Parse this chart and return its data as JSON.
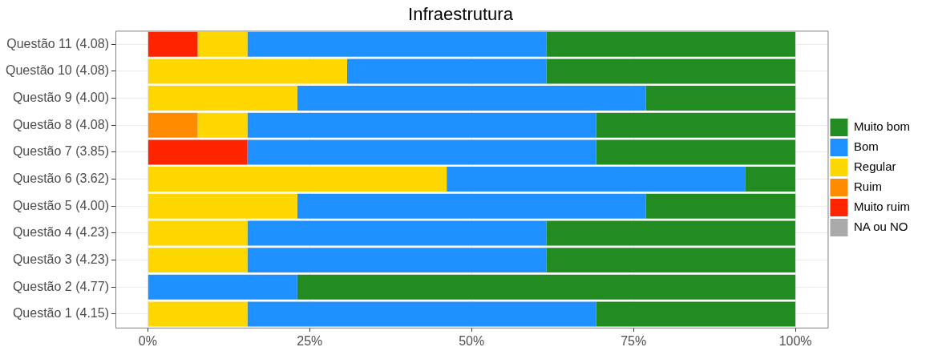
{
  "chart_data": {
    "type": "bar",
    "orientation": "horizontal",
    "stacked": true,
    "title": "Infraestrutura",
    "categories": [
      "Questão 11 (4.08)",
      "Questão 10 (4.08)",
      "Questão 9 (4.00)",
      "Questão 8 (4.08)",
      "Questão 7 (3.85)",
      "Questão 6 (3.62)",
      "Questão 5 (4.00)",
      "Questão 4 (4.23)",
      "Questão 3 (4.23)",
      "Questão 2 (4.77)",
      "Questão 1 (4.15)"
    ],
    "series": [
      {
        "name": "NA ou NO",
        "color": "#aaaaaa",
        "values": [
          0,
          0,
          0,
          0,
          0,
          0,
          0,
          0,
          0,
          0,
          0
        ]
      },
      {
        "name": "Muito ruim",
        "color": "#ff2400",
        "values": [
          7.69,
          0,
          0,
          0,
          15.38,
          0,
          0,
          0,
          0,
          0,
          0
        ]
      },
      {
        "name": "Ruim",
        "color": "#ff8c00",
        "values": [
          0,
          0,
          0,
          7.69,
          0,
          0,
          0,
          0,
          0,
          0,
          0
        ]
      },
      {
        "name": "Regular",
        "color": "#ffd700",
        "values": [
          7.69,
          30.77,
          23.08,
          7.69,
          0,
          46.15,
          23.08,
          15.38,
          15.38,
          0,
          15.38
        ]
      },
      {
        "name": "Bom",
        "color": "#1e90ff",
        "values": [
          46.15,
          30.77,
          53.85,
          53.85,
          53.85,
          46.15,
          53.85,
          46.15,
          46.15,
          23.08,
          53.85
        ]
      },
      {
        "name": "Muito bom",
        "color": "#228b22",
        "values": [
          38.46,
          38.46,
          23.08,
          30.77,
          30.77,
          7.69,
          23.08,
          38.46,
          38.46,
          76.92,
          30.77
        ]
      }
    ],
    "xlim": [
      -5,
      105
    ],
    "xticks": [
      {
        "value": 0,
        "label": "0%"
      },
      {
        "value": 25,
        "label": "25%"
      },
      {
        "value": 50,
        "label": "50%"
      },
      {
        "value": 75,
        "label": "75%"
      },
      {
        "value": 100,
        "label": "100%"
      }
    ],
    "grid": true,
    "legend": "right"
  }
}
